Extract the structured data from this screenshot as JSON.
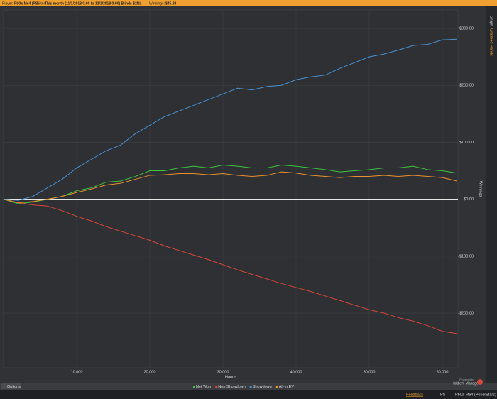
{
  "header": {
    "player_label": "Player:",
    "player": "Pb0a-Me4 (PS)",
    "filter_label": "Filter:",
    "filter": "This month (11/1/2018 0:00 to 12/1/2018 0:00) Blinds $2NL",
    "winnings_label": "Winnings:",
    "winnings": "$45.88"
  },
  "side_tabs": [
    "Graph",
    "Graphed Hands"
  ],
  "footer": {
    "options": "Options",
    "feedback": "Feedback",
    "site": "PS",
    "account": "Pb0a-Me4 (PokerStars)",
    "powered_by": "Powered by",
    "product": "Hold'em Manager"
  },
  "chart_data": {
    "type": "line",
    "x_label": "Hands",
    "y_label": "Winnings",
    "x": [
      0,
      2000,
      4000,
      6000,
      8000,
      10000,
      12000,
      14000,
      16000,
      18000,
      20000,
      22000,
      24000,
      26000,
      28000,
      30000,
      32000,
      34000,
      36000,
      38000,
      40000,
      42000,
      44000,
      46000,
      48000,
      50000,
      52000,
      54000,
      56000,
      58000,
      60000,
      62000
    ],
    "series": [
      {
        "name": "Net Won",
        "color": "#3ec43e",
        "values": [
          0,
          -8,
          -5,
          0,
          5,
          15,
          20,
          30,
          32,
          40,
          50,
          50,
          55,
          58,
          55,
          60,
          58,
          55,
          55,
          60,
          58,
          55,
          52,
          48,
          50,
          52,
          55,
          55,
          58,
          52,
          50,
          46
        ]
      },
      {
        "name": "Non Showdown",
        "color": "#d9453f",
        "values": [
          0,
          -6,
          -10,
          -12,
          -20,
          -30,
          -38,
          -48,
          -56,
          -64,
          -72,
          -82,
          -90,
          -98,
          -106,
          -115,
          -124,
          -132,
          -140,
          -148,
          -155,
          -162,
          -170,
          -178,
          -186,
          -194,
          -200,
          -208,
          -214,
          -222,
          -232,
          -236
        ]
      },
      {
        "name": "Showdown",
        "color": "#4a90d0",
        "values": [
          0,
          -2,
          5,
          20,
          35,
          55,
          70,
          85,
          95,
          115,
          130,
          145,
          155,
          165,
          175,
          185,
          195,
          192,
          198,
          200,
          210,
          215,
          218,
          230,
          240,
          250,
          255,
          262,
          270,
          272,
          280,
          281
        ]
      },
      {
        "name": "All-In EV",
        "color": "#e89030",
        "values": [
          0,
          -6,
          -4,
          0,
          5,
          12,
          18,
          25,
          28,
          35,
          42,
          43,
          45,
          45,
          43,
          45,
          42,
          40,
          42,
          48,
          46,
          42,
          40,
          38,
          40,
          40,
          42,
          40,
          42,
          40,
          38,
          32
        ]
      }
    ],
    "xlim": [
      0,
      62136
    ],
    "ylim": [
      -296,
      332.5
    ],
    "xticks": [
      {
        "value": 10000,
        "label": "10,000"
      },
      {
        "value": 20000,
        "label": "20,000"
      },
      {
        "value": 30000,
        "label": "30,000"
      },
      {
        "value": 40000,
        "label": "40,000"
      },
      {
        "value": 50000,
        "label": "50,000"
      },
      {
        "value": 60000,
        "label": "60,000"
      }
    ],
    "yticks": [
      {
        "value": -200,
        "label": "-$200.00"
      },
      {
        "value": -100,
        "label": "-$100.00"
      },
      {
        "value": 0,
        "label": "$0.00"
      },
      {
        "value": 100,
        "label": "$100.00"
      },
      {
        "value": 200,
        "label": "$200.00"
      },
      {
        "value": 300,
        "label": "$300.00"
      }
    ],
    "grid": true,
    "zero_line_color": "#ffffff",
    "legend": "bottom"
  }
}
